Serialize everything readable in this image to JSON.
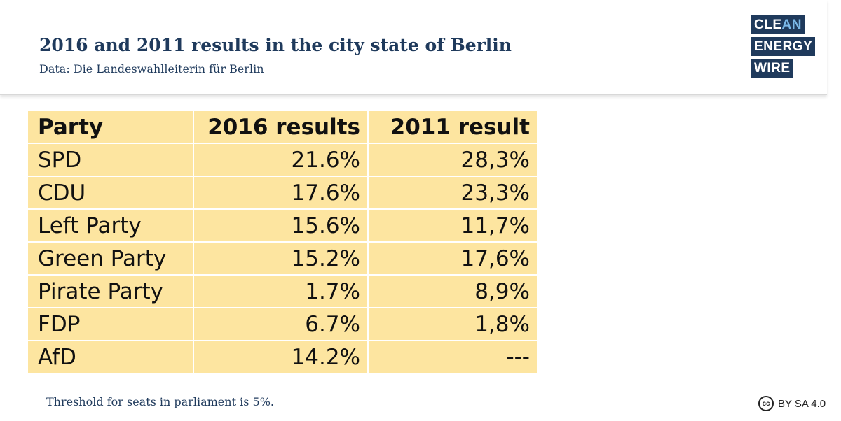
{
  "header": {
    "title": "2016 and 2011 results in the city state of Berlin",
    "subtitle": "Data: Die Landeswahlleiterin für Berlin"
  },
  "logo": {
    "rows": [
      {
        "main": "CLE",
        "accent": "AN"
      },
      {
        "main": "ENERGY",
        "accent": ""
      },
      {
        "main": "WIRE",
        "accent": ""
      }
    ],
    "colors": {
      "background": "#1f3a5c",
      "accent": "#7ab8e8"
    }
  },
  "chart_data": {
    "type": "table",
    "columns": [
      "Party",
      "2016 results",
      "2011 result"
    ],
    "rows": [
      [
        "SPD",
        "21.6%",
        "28,3%"
      ],
      [
        "CDU",
        "17.6%",
        "23,3%"
      ],
      [
        "Left Party",
        "15.6%",
        "11,7%"
      ],
      [
        "Green Party",
        "15.2%",
        "17,6%"
      ],
      [
        "Pirate Party",
        "1.7%",
        "8,9%"
      ],
      [
        "FDP",
        "6.7%",
        "1,8%"
      ],
      [
        "AfD",
        "14.2%",
        "---"
      ]
    ],
    "colors": {
      "cell_background": "#fde5a0",
      "title_color": "#1f3a5c"
    }
  },
  "footnote": "Threshold for seats in parliament is 5%.",
  "license": {
    "icon": "creative-commons-icon",
    "icon_text": "cc",
    "text": "BY SA 4.0"
  }
}
